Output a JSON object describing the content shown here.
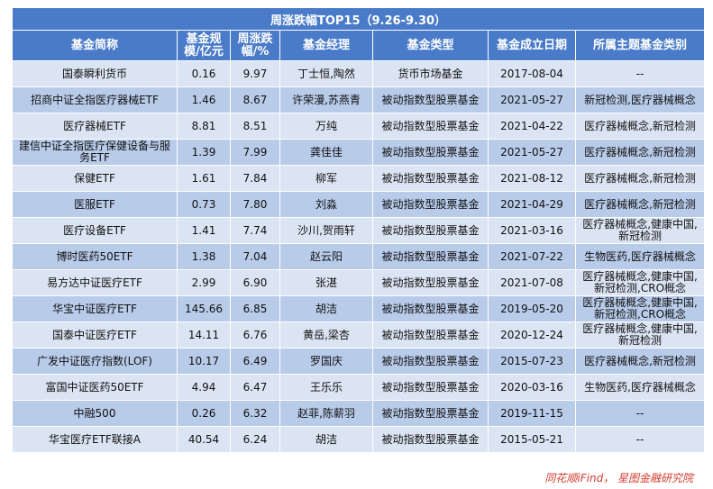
{
  "title": "周涨跌幅TOP15（9.26-9.30）",
  "headers": [
    "基金简称",
    "基金规模/亿元",
    "周涨跌幅/%",
    "基金经理",
    "基金类型",
    "基金成立日期",
    "所属主题基金类别"
  ],
  "rows": [
    [
      "国泰瞬利货币",
      "0.16",
      "9.97",
      "丁士恒,陶然",
      "货币市场基金",
      "2017-08-04",
      "--"
    ],
    [
      "招商中证全指医疗器械ETF",
      "1.46",
      "8.67",
      "许荣漫,苏燕青",
      "被动指数型股票基金",
      "2021-05-27",
      "新冠检测,医疗器械概念"
    ],
    [
      "医疗器械ETF",
      "8.81",
      "8.51",
      "万纯",
      "被动指数型股票基金",
      "2021-04-22",
      "医疗器械概念,新冠检测"
    ],
    [
      "建信中证全指医疗保健设备与服务ETF",
      "1.39",
      "7.99",
      "龚佳佳",
      "被动指数型股票基金",
      "2021-05-27",
      "医疗器械概念,新冠检测"
    ],
    [
      "保健ETF",
      "1.61",
      "7.84",
      "柳军",
      "被动指数型股票基金",
      "2021-08-12",
      "医疗器械概念,新冠检测"
    ],
    [
      "医服ETF",
      "0.73",
      "7.80",
      "刘淼",
      "被动指数型股票基金",
      "2021-04-29",
      "医疗器械概念,新冠检测"
    ],
    [
      "医疗设备ETF",
      "1.41",
      "7.74",
      "沙川,贺雨轩",
      "被动指数型股票基金",
      "2021-03-16",
      "医疗器械概念,健康中国,新冠检测"
    ],
    [
      "博时医药50ETF",
      "1.38",
      "7.04",
      "赵云阳",
      "被动指数型股票基金",
      "2021-07-22",
      "生物医药,医疗器械概念"
    ],
    [
      "易方达中证医疗ETF",
      "2.99",
      "6.90",
      "张湛",
      "被动指数型股票基金",
      "2021-07-08",
      "医疗器械概念,健康中国,新冠检测,CRO概念"
    ],
    [
      "华宝中证医疗ETF",
      "145.66",
      "6.85",
      "胡洁",
      "被动指数型股票基金",
      "2019-05-20",
      "医疗器械概念,健康中国,新冠检测,CRO概念"
    ],
    [
      "国泰中证医疗ETF",
      "14.11",
      "6.76",
      "黄岳,梁杏",
      "被动指数型股票基金",
      "2020-12-24",
      "医疗器械概念,健康中国,新冠检测"
    ],
    [
      "广发中证医疗指数(LOF)",
      "10.17",
      "6.49",
      "罗国庆",
      "被动指数型股票基金",
      "2015-07-23",
      "医疗器械概念,新冠检测"
    ],
    [
      "富国中证医药50ETF",
      "4.94",
      "6.47",
      "王乐乐",
      "被动指数型股票基金",
      "2020-03-16",
      "生物医药,医疗器械概念"
    ],
    [
      "中融500",
      "0.26",
      "6.32",
      "赵菲,陈薪羽",
      "被动指数型股票基金",
      "2019-11-15",
      "--"
    ],
    [
      "华宝医疗ETF联接A",
      "40.54",
      "6.24",
      "胡洁",
      "被动指数型股票基金",
      "2015-05-21",
      "--"
    ]
  ],
  "source": "同花顺iFind， 星图金融研究院"
}
